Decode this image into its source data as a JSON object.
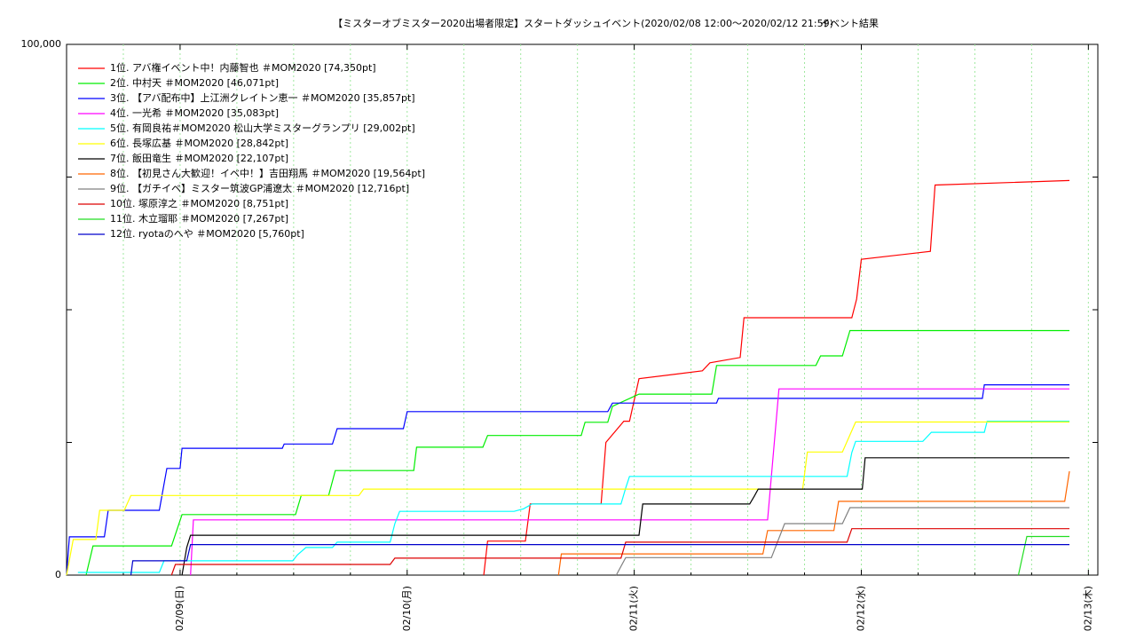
{
  "chart_data": {
    "type": "line",
    "title": "【ミスターオブミスター2020出場者限定】スタートダッシュイベント(2020/02/08 12:00〜2020/02/12 21:59)",
    "subtitle": "イベント結果",
    "xlim": [
      0,
      109
    ],
    "xticks": [
      {
        "value": 12,
        "label": "02/09(日)"
      },
      {
        "value": 36,
        "label": "02/10(月)"
      },
      {
        "value": 60,
        "label": "02/11(火)"
      },
      {
        "value": 84,
        "label": "02/12(水)"
      },
      {
        "value": 108,
        "label": "02/13(木)"
      }
    ],
    "xminorticks": [
      6,
      18,
      24,
      30,
      42,
      48,
      54,
      66,
      72,
      78,
      90,
      96,
      102
    ],
    "ylim": [
      0,
      100000
    ],
    "yticks": [
      0,
      {
        "value": 100000,
        "label": "100,000"
      }
    ],
    "yminorticks": [
      25000,
      50000,
      75000
    ],
    "grid": true,
    "legend": "top-left",
    "series": [
      {
        "name": "1位. アバ権イベント中！内藤智也 ＃MOM2020 [74,350pt]",
        "color": "#ff0000",
        "x": [
          44.1,
          44.5,
          48.5,
          49,
          56.5,
          57,
          58.9,
          59.5,
          60.5,
          67.2,
          68,
          71.2,
          71.6,
          83,
          83.5,
          84,
          91.3,
          91.8,
          106
        ],
        "values": [
          0,
          6400,
          6400,
          13400,
          13400,
          25000,
          29000,
          29000,
          37000,
          38500,
          40000,
          41000,
          48500,
          48500,
          52000,
          59500,
          61000,
          73500,
          74350
        ]
      },
      {
        "name": "2位. 中村天 ＃MOM2020 [46,071pt]",
        "color": "#00ee00",
        "x": [
          2.06,
          2.8,
          11.1,
          12.2,
          24.2,
          24.8,
          27.7,
          28.4,
          36.7,
          37,
          44,
          44.5,
          54.4,
          54.8,
          57.2,
          57.7,
          60.5,
          68.2,
          68.7,
          79.2,
          79.7,
          82,
          82.8,
          106
        ],
        "values": [
          0,
          5500,
          5500,
          11400,
          11400,
          15000,
          15000,
          19700,
          19700,
          24100,
          24100,
          26300,
          26300,
          28800,
          28800,
          31800,
          34100,
          34100,
          39500,
          39500,
          41300,
          41300,
          46071,
          46071
        ]
      },
      {
        "name": "3位. 【アバ配布中】上江洲クレイトン恵一 ＃MOM2020 [35,857pt]",
        "color": "#0000ff",
        "x": [
          0,
          0.3,
          4,
          4.4,
          9.8,
          10.6,
          12,
          12.2,
          22.8,
          23,
          28.1,
          28.6,
          35.6,
          36,
          57.2,
          57.7,
          68.7,
          68.9,
          96.8,
          97,
          106
        ],
        "values": [
          0,
          7200,
          7200,
          12200,
          12200,
          20100,
          20100,
          23900,
          23900,
          24700,
          24700,
          27600,
          27600,
          30800,
          30800,
          32400,
          32400,
          33300,
          33300,
          35857,
          35857
        ]
      },
      {
        "name": "4位. 一光希 ＃MOM2020 [35,083pt]",
        "color": "#ff00ff",
        "x": [
          13.1,
          13.4,
          74.1,
          75.3,
          106
        ],
        "values": [
          0,
          10400,
          10400,
          35083,
          35083
        ]
      },
      {
        "name": "5位. 有岡良祐＃MOM2020 松山大学ミスターグランプリ [29,002pt]",
        "color": "#00ffff",
        "x": [
          1.2,
          9.8,
          10.3,
          23.9,
          24.4,
          25.3,
          28.1,
          28.6,
          34.2,
          34.7,
          35.2,
          47.3,
          48.3,
          49.2,
          58.6,
          59.1,
          59.5,
          82.5,
          83,
          83.4,
          90.5,
          91.4,
          97,
          97.3,
          106
        ],
        "values": [
          500,
          500,
          2700,
          2700,
          3800,
          5200,
          5200,
          6200,
          6200,
          9700,
          12000,
          12000,
          12500,
          13400,
          13400,
          16400,
          18600,
          18600,
          23100,
          25200,
          25200,
          26900,
          26900,
          29002,
          29002
        ]
      },
      {
        "name": "6位. 長塚広基 ＃MOM2020 [28,842pt]",
        "color": "#ffff00",
        "x": [
          0,
          0.7,
          3.1,
          3.5,
          6.1,
          6.8,
          30.9,
          31.4,
          77.8,
          78.3,
          82,
          83.4,
          106
        ],
        "values": [
          0,
          6700,
          6700,
          12200,
          12200,
          15000,
          15000,
          16200,
          16200,
          23200,
          23200,
          28842,
          28842
        ]
      },
      {
        "name": "7位. 飯田竜生 ＃MOM2020 [22,107pt]",
        "color": "#000000",
        "x": [
          12.2,
          12.7,
          13.1,
          60.5,
          60.9,
          72.2,
          72.7,
          73.1,
          84.1,
          84.4,
          106
        ],
        "values": [
          0,
          5200,
          7500,
          7500,
          13400,
          13400,
          14900,
          16200,
          16200,
          22107,
          22107
        ]
      },
      {
        "name": "8位. 【初見さん大歓迎！イベ中！】吉田翔馬 ＃MOM2020 [19,564pt]",
        "color": "#ff6600",
        "x": [
          52,
          52.3,
          73.6,
          74.1,
          81.1,
          81.6,
          105.5,
          106
        ],
        "values": [
          0,
          4000,
          4000,
          8400,
          8400,
          13900,
          13900,
          19564
        ]
      },
      {
        "name": "9位. 【ガチイベ】ミスター筑波GP浦遼太 ＃MOM2020 [12,716pt]",
        "color": "#808080",
        "x": [
          58.1,
          59.1,
          74.5,
          75.9,
          82,
          82.8,
          106
        ],
        "values": [
          0,
          3300,
          3300,
          9700,
          9700,
          12716,
          12716
        ]
      },
      {
        "name": "10位. 塚原淳之 ＃MOM2020 [8,751pt]",
        "color": "#dd0000",
        "x": [
          11.1,
          11.5,
          34.2,
          34.7,
          58.6,
          59.1,
          82.5,
          83,
          106
        ],
        "values": [
          0,
          2000,
          2000,
          3200,
          3200,
          6200,
          6200,
          8751,
          8751
        ]
      },
      {
        "name": "11位. 木立瑠耶 ＃MOM2020 [7,267pt]",
        "color": "#22dd22",
        "x": [
          100.6,
          101.5,
          106
        ],
        "values": [
          0,
          7267,
          7267
        ]
      },
      {
        "name": "12位. ryotaのへや ＃MOM2020 [5,760pt]",
        "color": "#0000cc",
        "x": [
          6.8,
          7,
          12.7,
          13.1,
          106
        ],
        "values": [
          0,
          2700,
          2700,
          5760,
          5760
        ]
      }
    ]
  }
}
